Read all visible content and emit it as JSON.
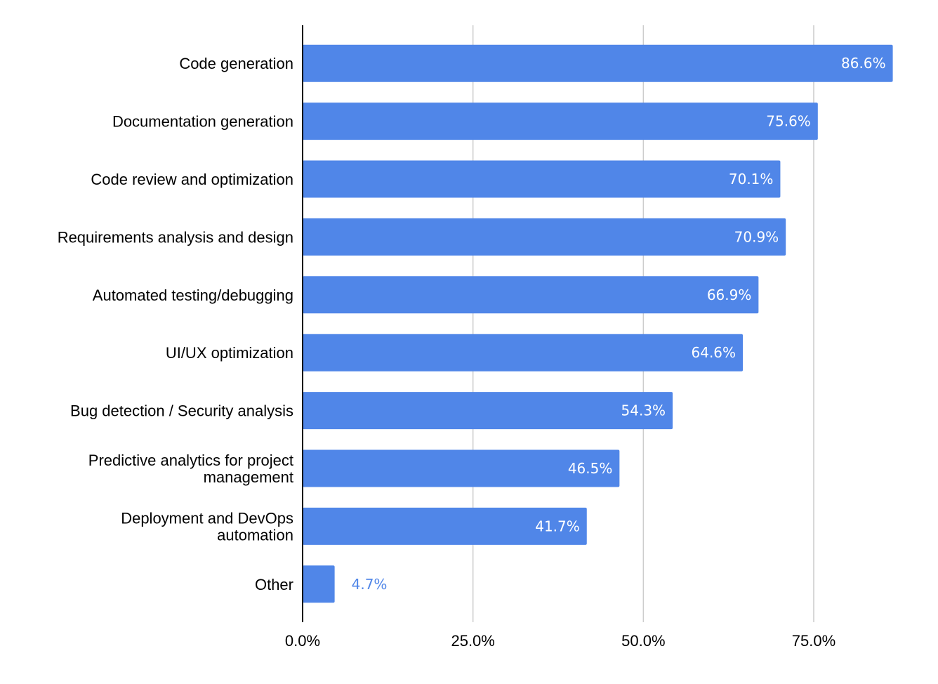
{
  "chart_data": {
    "type": "bar",
    "orientation": "horizontal",
    "title": "",
    "xlabel": "",
    "ylabel": "",
    "categories": [
      "Code generation",
      "Documentation generation",
      "Code review and optimization",
      "Requirements analysis and design",
      "Automated testing/debugging",
      "UI/UX optimization",
      "Bug detection / Security analysis",
      "Predictive analytics for project management",
      "Deployment and DevOps automation",
      "Other"
    ],
    "category_lines": [
      [
        "Code generation"
      ],
      [
        "Documentation generation"
      ],
      [
        "Code review and optimization"
      ],
      [
        "Requirements analysis and design"
      ],
      [
        "Automated testing/debugging"
      ],
      [
        "UI/UX optimization"
      ],
      [
        "Bug detection / Security analysis"
      ],
      [
        "Predictive analytics for project",
        "management"
      ],
      [
        "Deployment and DevOps",
        "automation"
      ],
      [
        "Other"
      ]
    ],
    "values": [
      86.6,
      75.6,
      70.1,
      70.9,
      66.9,
      64.6,
      54.3,
      46.5,
      41.7,
      4.7
    ],
    "value_labels": [
      "86.6%",
      "75.6%",
      "70.1%",
      "70.9%",
      "66.9%",
      "64.6%",
      "54.3%",
      "46.5%",
      "41.7%",
      "4.7%"
    ],
    "xlim": [
      0,
      87
    ],
    "ticks": [
      0,
      25,
      50,
      75
    ],
    "tick_labels": [
      "0.0%",
      "25.0%",
      "50.0%",
      "75.0%"
    ],
    "grid": true,
    "legend": "none",
    "colors": {
      "bar": "#5086e8",
      "label_inside": "#ffffff",
      "label_outside": "#5086e8",
      "grid": "#cccccc",
      "axis": "#000000"
    }
  }
}
